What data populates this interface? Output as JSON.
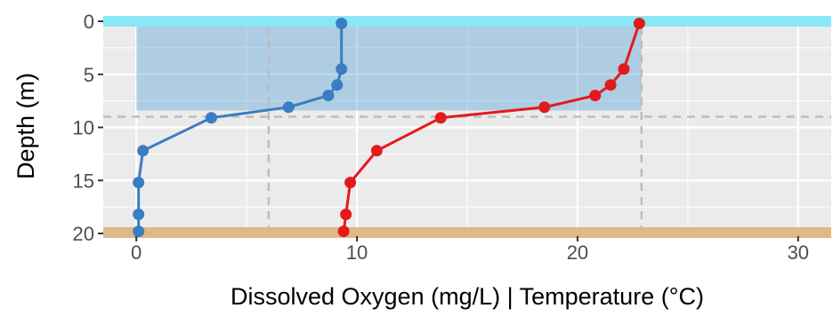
{
  "chart_data": {
    "type": "line",
    "xlabel": "Dissolved Oxygen (mg/L)  |  Temperature (°C)",
    "ylabel": "Depth (m)",
    "xlim": [
      -1.5,
      31.5
    ],
    "ylim": [
      0,
      20
    ],
    "y_reversed": true,
    "grid": true,
    "x_ticks": [
      0,
      10,
      20,
      30
    ],
    "y_ticks": [
      0,
      5,
      10,
      15,
      20
    ],
    "series": [
      {
        "color": "#3a7dc0",
        "points": [
          {
            "x": 9.3,
            "y": 0.2
          },
          {
            "x": 9.3,
            "y": 4.5
          },
          {
            "x": 9.1,
            "y": 6.0
          },
          {
            "x": 8.7,
            "y": 7.0
          },
          {
            "x": 6.9,
            "y": 8.1
          },
          {
            "x": 3.4,
            "y": 9.1
          },
          {
            "x": 0.3,
            "y": 12.2
          },
          {
            "x": 0.1,
            "y": 15.2
          },
          {
            "x": 0.1,
            "y": 18.2
          },
          {
            "x": 0.1,
            "y": 19.8
          }
        ]
      },
      {
        "color": "#e31a1c",
        "points": [
          {
            "x": 22.8,
            "y": 0.2
          },
          {
            "x": 22.1,
            "y": 4.5
          },
          {
            "x": 21.5,
            "y": 6.0
          },
          {
            "x": 20.8,
            "y": 7.0
          },
          {
            "x": 18.5,
            "y": 8.1
          },
          {
            "x": 13.8,
            "y": 9.1
          },
          {
            "x": 10.9,
            "y": 12.2
          },
          {
            "x": 9.7,
            "y": 15.2
          },
          {
            "x": 9.5,
            "y": 18.2
          },
          {
            "x": 9.4,
            "y": 19.8
          }
        ]
      }
    ],
    "surface_band": {
      "color": "#8ae8f6",
      "depth": 0
    },
    "bottom_band": {
      "color": "#deb887",
      "depth": 20
    },
    "epilimnion_box": {
      "x_range": [
        0,
        22.9
      ],
      "depth_range": [
        0.5,
        8.4
      ],
      "color": "#4d9ad6"
    },
    "thermocline_line": {
      "depth": 9.0
    },
    "x_reference_lines": [
      6.0,
      22.9
    ]
  }
}
